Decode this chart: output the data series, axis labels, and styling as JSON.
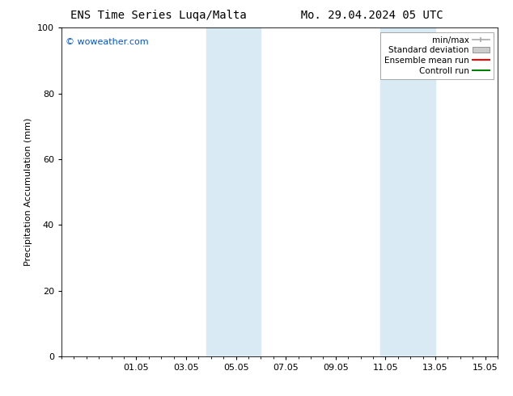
{
  "title": "ENS Time Series Luqa/Malta        Mo. 29.04.2024 05 UTC",
  "ylabel": "Precipitation Accumulation (mm)",
  "watermark": "© woweather.com",
  "ylim": [
    0,
    100
  ],
  "yticks": [
    0,
    20,
    40,
    60,
    80,
    100
  ],
  "xtick_labels": [
    "01.05",
    "03.05",
    "05.05",
    "07.05",
    "09.05",
    "11.05",
    "13.05",
    "15.05"
  ],
  "xtick_positions": [
    1,
    3,
    5,
    7,
    9,
    11,
    13,
    15
  ],
  "xlim_min": -2,
  "xlim_max": 15.5,
  "shaded_bands": [
    {
      "xmin": 3.8,
      "xmax": 6.0,
      "color": "#daeaf5"
    },
    {
      "xmin": 10.8,
      "xmax": 13.0,
      "color": "#daeaf5"
    }
  ],
  "legend_items": [
    {
      "label": "min/max",
      "color": "#aaaaaa",
      "type": "minmax"
    },
    {
      "label": "Standard deviation",
      "color": "#cccccc",
      "type": "box"
    },
    {
      "label": "Ensemble mean run",
      "color": "#ff0000",
      "type": "line"
    },
    {
      "label": "Controll run",
      "color": "#008000",
      "type": "line"
    }
  ],
  "watermark_color": "#0055cc",
  "background_color": "#ffffff",
  "title_fontsize": 10,
  "axis_label_fontsize": 8,
  "tick_fontsize": 8,
  "legend_fontsize": 7.5,
  "watermark_fontsize": 8
}
